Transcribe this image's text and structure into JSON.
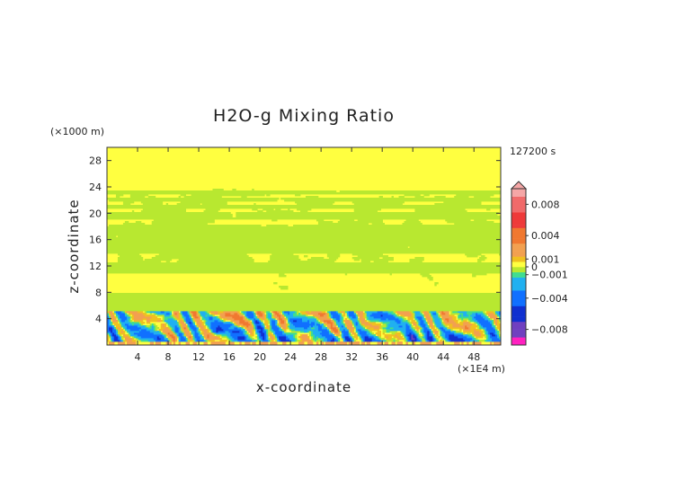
{
  "chart_data": {
    "type": "heatmap",
    "title": "H2O-g Mixing Ratio",
    "xlabel": "x-coordinate",
    "ylabel": "z-coordinate",
    "x_unit": "(×1E4 m)",
    "y_unit": "(×1000 m)",
    "time_label": "127200 s",
    "xlim": [
      0,
      51.5
    ],
    "ylim": [
      0,
      30
    ],
    "xticks": [
      4,
      8,
      12,
      16,
      20,
      24,
      28,
      32,
      36,
      40,
      44,
      48
    ],
    "yticks": [
      4,
      8,
      12,
      16,
      20,
      24,
      28
    ],
    "colorbar": {
      "ticks": [
        {
          "value": 0.008,
          "label": "0.008"
        },
        {
          "value": 0.004,
          "label": "0.004"
        },
        {
          "value": 0.001,
          "label": "0.001"
        },
        {
          "value": 0,
          "label": "0"
        },
        {
          "value": -0.001,
          "label": "−0.001"
        },
        {
          "value": -0.004,
          "label": "−0.004"
        },
        {
          "value": -0.008,
          "label": "−0.008"
        }
      ],
      "range": [
        -0.01,
        0.01
      ],
      "color_stops": [
        {
          "value": 0.01,
          "color": "#f5a6a6"
        },
        {
          "value": 0.008,
          "color": "#f06a6a"
        },
        {
          "value": 0.006,
          "color": "#ee3a3a"
        },
        {
          "value": 0.004,
          "color": "#f07830"
        },
        {
          "value": 0.002,
          "color": "#f2a050"
        },
        {
          "value": 0.001,
          "color": "#f0c020"
        },
        {
          "value": 0.0003,
          "color": "#ffff40"
        },
        {
          "value": -0.0003,
          "color": "#b8e830"
        },
        {
          "value": -0.001,
          "color": "#40dd90"
        },
        {
          "value": -0.002,
          "color": "#20b0f0"
        },
        {
          "value": -0.004,
          "color": "#1070ff"
        },
        {
          "value": -0.006,
          "color": "#1030d0"
        },
        {
          "value": -0.008,
          "color": "#7040c0"
        },
        {
          "value": -0.01,
          "color": "#ff20c0"
        }
      ]
    },
    "bands": [
      {
        "z": [
          26,
          30
        ],
        "class": "yellow"
      },
      {
        "z": [
          23.6,
          26
        ],
        "class": "yellow"
      },
      {
        "z": [
          22.8,
          23.4
        ],
        "class": "green"
      },
      {
        "z": [
          21.8,
          22.4
        ],
        "class": "green"
      },
      {
        "z": [
          20.6,
          21.4
        ],
        "class": "green"
      },
      {
        "z": [
          19.0,
          20.2
        ],
        "class": "green"
      },
      {
        "z": [
          14.0,
          18.2
        ],
        "class": "green"
      },
      {
        "z": [
          10.8,
          12.5
        ],
        "class": "green"
      },
      {
        "z": [
          8.0,
          10.8
        ],
        "class": "yellow"
      },
      {
        "z": [
          5.2,
          8.0
        ],
        "class": "green"
      },
      {
        "z": [
          0,
          5.2
        ],
        "class": "turbulent"
      }
    ]
  }
}
